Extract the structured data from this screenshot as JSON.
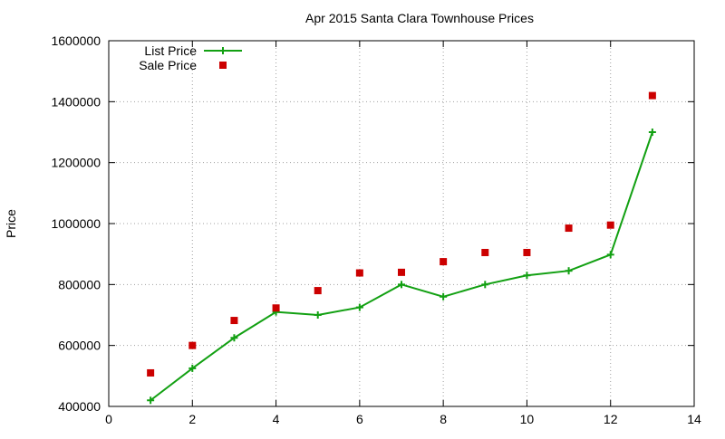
{
  "chart_data": {
    "type": "line",
    "title": "Apr 2015 Santa Clara Townhouse Prices",
    "xlabel": "",
    "ylabel": "Price",
    "xlim": [
      0,
      14
    ],
    "ylim": [
      400000,
      1600000
    ],
    "x_ticks": [
      0,
      2,
      4,
      6,
      8,
      10,
      12,
      14
    ],
    "y_ticks": [
      400000,
      600000,
      800000,
      1000000,
      1200000,
      1400000,
      1600000
    ],
    "grid": true,
    "legend_position": "top-left",
    "series": [
      {
        "name": "List Price",
        "style": "line-with-plus-markers",
        "color": "#12a012",
        "x": [
          1,
          2,
          3,
          4,
          5,
          6,
          7,
          8,
          9,
          10,
          11,
          12,
          13
        ],
        "values": [
          420000,
          525000,
          625000,
          710000,
          700000,
          725000,
          800000,
          760000,
          800000,
          830000,
          845000,
          898000,
          1300000
        ]
      },
      {
        "name": "Sale Price",
        "style": "square-markers",
        "color": "#cc0000",
        "x": [
          1,
          2,
          3,
          4,
          5,
          6,
          7,
          8,
          9,
          10,
          11,
          12,
          13
        ],
        "values": [
          510000,
          600000,
          682000,
          723000,
          780000,
          838000,
          840000,
          875000,
          905000,
          905000,
          985000,
          995000,
          1420000
        ]
      }
    ]
  }
}
